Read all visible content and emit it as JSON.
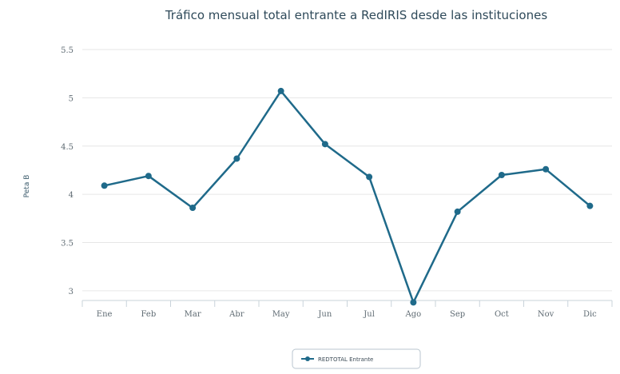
{
  "chart_data": {
    "type": "line",
    "title": "Tráfico mensual total entrante a RedIRIS desde las instituciones",
    "ylabel": "Peta B",
    "xlabel": "",
    "categories": [
      "Ene",
      "Feb",
      "Mar",
      "Abr",
      "May",
      "Jun",
      "Jul",
      "Ago",
      "Sep",
      "Oct",
      "Nov",
      "Dic"
    ],
    "y_ticks": [
      "3",
      "3.5",
      "4",
      "4.5",
      "5",
      "5.5"
    ],
    "y_tick_values": [
      3,
      3.5,
      4,
      4.5,
      5,
      5.5
    ],
    "ylim": [
      2.9,
      5.5
    ],
    "series": [
      {
        "name": "REDTOTAL Entrante",
        "values": [
          4.09,
          4.19,
          3.86,
          4.37,
          5.07,
          4.52,
          4.18,
          2.88,
          3.82,
          4.2,
          4.26,
          3.88
        ]
      }
    ],
    "grid": true,
    "legend_position": "bottom-center",
    "colors": {
      "series": "#1f6a8a",
      "grid": "#e6e6e6",
      "axis": "#c9d3da"
    }
  }
}
